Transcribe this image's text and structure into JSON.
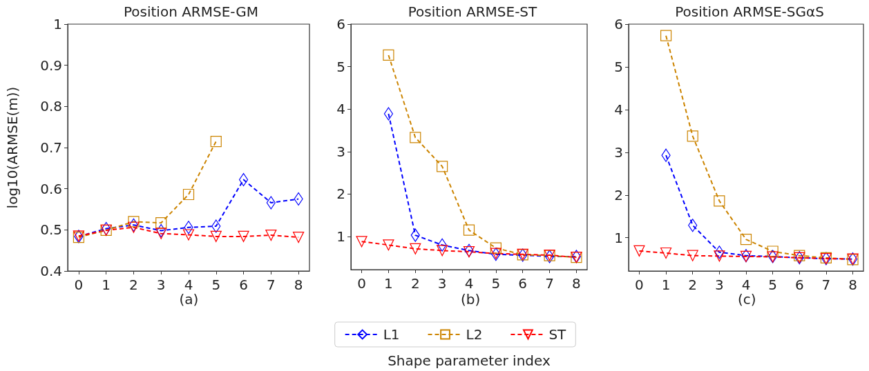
{
  "chart_data": [
    {
      "type": "line",
      "title": "Position ARMSE-GM",
      "ylabel": "log10(ARMSE(m))",
      "annotations": [
        "(a)"
      ],
      "x": [
        0,
        1,
        2,
        3,
        4,
        5,
        6,
        7,
        8
      ],
      "xlim": [
        -0.4,
        8.4
      ],
      "xticks": [
        0,
        1,
        2,
        3,
        4,
        5,
        6,
        7,
        8
      ],
      "ylim": [
        0.4,
        1.0
      ],
      "yticks": [
        0.4,
        0.5,
        0.6,
        0.7,
        0.8,
        0.9,
        1.0
      ],
      "grid": false,
      "legend": false,
      "line_style": "dashed",
      "series": [
        {
          "color": "#0000ff",
          "marker": "diamond",
          "values": [
            0.484,
            0.503,
            0.512,
            0.498,
            0.506,
            0.509,
            0.622,
            0.566,
            0.575
          ]
        },
        {
          "color": "#cc8400",
          "marker": "square",
          "values": [
            0.482,
            0.499,
            0.52,
            0.517,
            0.586,
            0.715,
            null,
            null,
            null
          ]
        },
        {
          "color": "#ff0000",
          "marker": "triangle",
          "values": [
            0.485,
            0.499,
            0.506,
            0.491,
            0.488,
            0.484,
            0.484,
            0.487,
            0.482
          ]
        }
      ]
    },
    {
      "type": "line",
      "title": "Position ARMSE-ST",
      "xlabel": "Shape parameter index",
      "annotations": [
        "(b)"
      ],
      "x": [
        0,
        1,
        2,
        3,
        4,
        5,
        6,
        7,
        8
      ],
      "xlim": [
        -0.4,
        8.4
      ],
      "xticks": [
        0,
        1,
        2,
        3,
        4,
        5,
        6,
        7,
        8
      ],
      "ylim": [
        0.22,
        6
      ],
      "yticks": [
        1,
        2,
        3,
        4,
        5,
        6
      ],
      "grid": false,
      "legend": "bottom",
      "line_style": "dashed",
      "series": [
        {
          "name": "L1",
          "color": "#0000ff",
          "marker": "diamond",
          "values": [
            null,
            3.89,
            1.03,
            0.8,
            0.67,
            0.58,
            0.56,
            0.53,
            0.53
          ]
        },
        {
          "name": "L2",
          "color": "#cc8400",
          "marker": "square",
          "values": [
            null,
            5.27,
            3.33,
            2.65,
            1.15,
            0.73,
            0.57,
            0.55,
            0.51
          ]
        },
        {
          "name": "ST",
          "color": "#ff0000",
          "marker": "triangle",
          "values": [
            0.88,
            0.8,
            0.71,
            0.67,
            0.64,
            0.6,
            0.58,
            0.56,
            0.51
          ]
        }
      ]
    },
    {
      "type": "line",
      "title": "Position ARMSE-SGαS",
      "annotations": [
        "(c)"
      ],
      "x": [
        0,
        1,
        2,
        3,
        4,
        5,
        6,
        7,
        8
      ],
      "xlim": [
        -0.4,
        8.4
      ],
      "xticks": [
        0,
        1,
        2,
        3,
        4,
        5,
        6,
        7,
        8
      ],
      "ylim": [
        0.22,
        6
      ],
      "yticks": [
        1,
        2,
        3,
        4,
        5,
        6
      ],
      "grid": false,
      "legend": false,
      "line_style": "dashed",
      "series": [
        {
          "color": "#0000ff",
          "marker": "diamond",
          "values": [
            null,
            2.93,
            1.29,
            0.66,
            0.58,
            0.56,
            0.53,
            0.51,
            0.5
          ]
        },
        {
          "color": "#cc8400",
          "marker": "square",
          "values": [
            null,
            5.73,
            3.38,
            1.86,
            0.96,
            0.68,
            0.58,
            0.53,
            0.49
          ]
        },
        {
          "color": "#ff0000",
          "marker": "triangle",
          "values": [
            0.69,
            0.64,
            0.58,
            0.57,
            0.56,
            0.55,
            0.53,
            0.51,
            0.5
          ]
        }
      ]
    }
  ]
}
